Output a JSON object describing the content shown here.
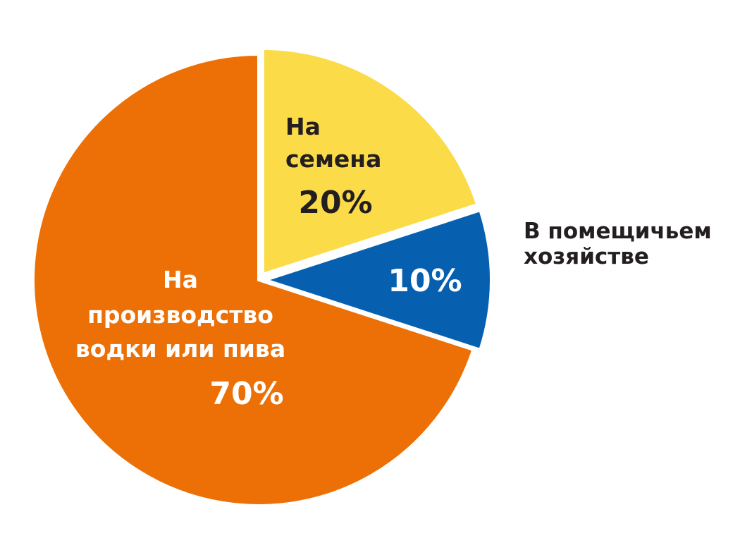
{
  "chart_data": {
    "type": "pie",
    "start_angle_deg": 0,
    "direction": "clockwise",
    "slices": [
      {
        "name_lines": [
          "На",
          "семена"
        ],
        "value": 20,
        "value_label": "20%",
        "color": "#FBDB48",
        "label_color": "#231F20",
        "exploded": true
      },
      {
        "name_lines": [
          "В помещичьем",
          "хозяйстве"
        ],
        "value": 10,
        "value_label": "10%",
        "color": "#0660AF",
        "label_color": "#FFFFFF",
        "name_color": "#231F20",
        "exploded": true
      },
      {
        "name_lines": [
          "На",
          "производство",
          "водки или пива"
        ],
        "value": 70,
        "value_label": "70%",
        "color": "#EC7005",
        "label_color": "#FFFFFF",
        "exploded": false
      }
    ]
  }
}
